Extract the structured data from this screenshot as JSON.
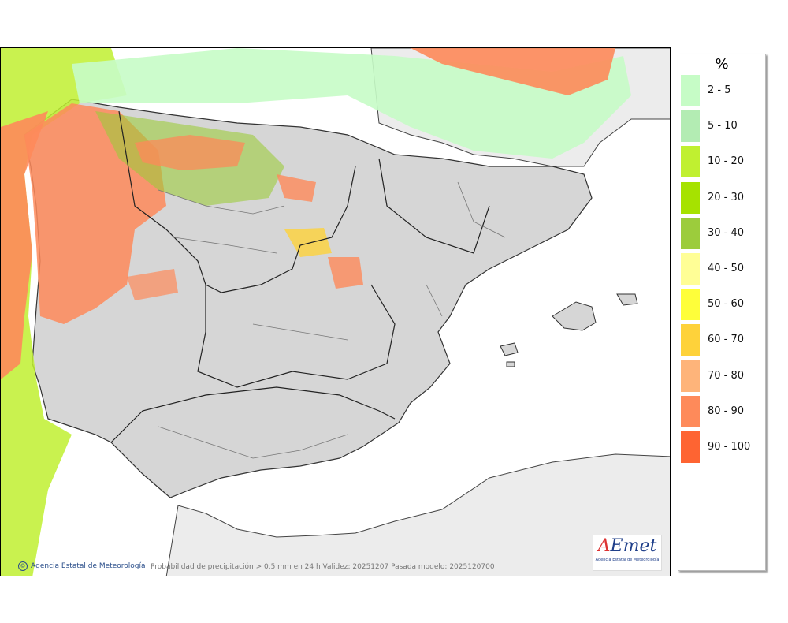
{
  "map": {
    "caption": "Probabilidad de precipitación > 0.5 mm en 24 h Validez: 20251207 Pasada modelo: 2025120700",
    "credit": "Agencia Estatal de Meteorología",
    "logo_word_a": "A",
    "logo_word_rest": "Emet",
    "logo_sub": "Agencia Estatal de Meteorología"
  },
  "legend": {
    "unit": "%",
    "items": [
      {
        "label": "2 - 5",
        "color": "#c6fcc6"
      },
      {
        "label": "5 - 10",
        "color": "#b3ecb3"
      },
      {
        "label": "10 - 20",
        "color": "#c0f030"
      },
      {
        "label": "20 - 30",
        "color": "#a6e200"
      },
      {
        "label": "30 - 40",
        "color": "#9ccc3c"
      },
      {
        "label": "40 - 50",
        "color": "#fffe96"
      },
      {
        "label": "50 - 60",
        "color": "#fefe3a"
      },
      {
        "label": "60 - 70",
        "color": "#fed23a"
      },
      {
        "label": "70 - 80",
        "color": "#feb47a"
      },
      {
        "label": "80 - 90",
        "color": "#fe8a5a"
      },
      {
        "label": "90 - 100",
        "color": "#fe6432"
      }
    ]
  }
}
